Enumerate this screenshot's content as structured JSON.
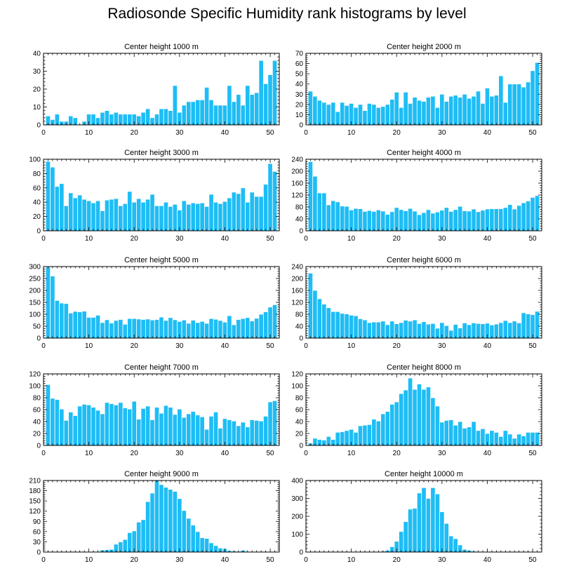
{
  "title": "Radiosonde Specific Humidity rank histograms by level",
  "colors": {
    "bar": "#1EBDF5",
    "bar_edge": "#ffffff",
    "axis": "#000000",
    "background": "#ffffff"
  },
  "chart_data": [
    {
      "type": "bar",
      "title": "Center height 1000 m",
      "xlabel": "",
      "ylabel": "",
      "xlim": [
        0,
        52
      ],
      "ylim": [
        0,
        40
      ],
      "xticks": [
        0,
        10,
        20,
        30,
        40,
        50
      ],
      "yticks": [
        0,
        10,
        20,
        30,
        40
      ],
      "x": [
        1,
        2,
        3,
        4,
        5,
        6,
        7,
        8,
        9,
        10,
        11,
        12,
        13,
        14,
        15,
        16,
        17,
        18,
        19,
        20,
        21,
        22,
        23,
        24,
        25,
        26,
        27,
        28,
        29,
        30,
        31,
        32,
        33,
        34,
        35,
        36,
        37,
        38,
        39,
        40,
        41,
        42,
        43,
        44,
        45,
        46,
        47,
        48,
        49,
        50,
        51
      ],
      "values": [
        5,
        3,
        6,
        2,
        2,
        5,
        4,
        0,
        2,
        6,
        6,
        4,
        7,
        8,
        6,
        7,
        6,
        6,
        6,
        6,
        5,
        7,
        9,
        4,
        6,
        9,
        9,
        8,
        22,
        7,
        11,
        13,
        13,
        14,
        14,
        21,
        14,
        11,
        11,
        11,
        22,
        13,
        17,
        11,
        22,
        17,
        18,
        36,
        23,
        28,
        36
      ]
    },
    {
      "type": "bar",
      "title": "Center height 2000 m",
      "xlabel": "",
      "ylabel": "",
      "xlim": [
        0,
        52
      ],
      "ylim": [
        0,
        70
      ],
      "xticks": [
        0,
        10,
        20,
        30,
        40,
        50
      ],
      "yticks": [
        0,
        10,
        20,
        30,
        40,
        50,
        60,
        70
      ],
      "x": [
        1,
        2,
        3,
        4,
        5,
        6,
        7,
        8,
        9,
        10,
        11,
        12,
        13,
        14,
        15,
        16,
        17,
        18,
        19,
        20,
        21,
        22,
        23,
        24,
        25,
        26,
        27,
        28,
        29,
        30,
        31,
        32,
        33,
        34,
        35,
        36,
        37,
        38,
        39,
        40,
        41,
        42,
        43,
        44,
        45,
        46,
        47,
        48,
        49,
        50,
        51
      ],
      "values": [
        33,
        28,
        24,
        22,
        20,
        22,
        13,
        22,
        19,
        21,
        17,
        20,
        14,
        21,
        20,
        17,
        18,
        20,
        25,
        32,
        17,
        32,
        21,
        27,
        24,
        23,
        27,
        28,
        17,
        30,
        23,
        28,
        29,
        27,
        30,
        26,
        28,
        33,
        21,
        36,
        28,
        29,
        48,
        22,
        40,
        40,
        40,
        37,
        42,
        53,
        61
      ]
    },
    {
      "type": "bar",
      "title": "Center height 3000 m",
      "xlabel": "",
      "ylabel": "",
      "xlim": [
        0,
        52
      ],
      "ylim": [
        0,
        100
      ],
      "xticks": [
        0,
        10,
        20,
        30,
        40,
        50
      ],
      "yticks": [
        0,
        20,
        40,
        60,
        80,
        100
      ],
      "x": [
        1,
        2,
        3,
        4,
        5,
        6,
        7,
        8,
        9,
        10,
        11,
        12,
        13,
        14,
        15,
        16,
        17,
        18,
        19,
        20,
        21,
        22,
        23,
        24,
        25,
        26,
        27,
        28,
        29,
        30,
        31,
        32,
        33,
        34,
        35,
        36,
        37,
        38,
        39,
        40,
        41,
        42,
        43,
        44,
        45,
        46,
        47,
        48,
        49,
        50,
        51
      ],
      "values": [
        97,
        89,
        62,
        66,
        35,
        53,
        46,
        50,
        44,
        42,
        39,
        42,
        28,
        43,
        44,
        45,
        35,
        38,
        55,
        40,
        45,
        40,
        44,
        51,
        35,
        35,
        40,
        34,
        37,
        29,
        42,
        37,
        39,
        38,
        39,
        34,
        51,
        40,
        38,
        41,
        46,
        54,
        52,
        60,
        40,
        54,
        48,
        48,
        65,
        94,
        83
      ]
    },
    {
      "type": "bar",
      "title": "Center height 4000 m",
      "xlabel": "",
      "ylabel": "",
      "xlim": [
        0,
        52
      ],
      "ylim": [
        0,
        240
      ],
      "xticks": [
        0,
        10,
        20,
        30,
        40,
        50
      ],
      "yticks": [
        0,
        40,
        80,
        120,
        160,
        200,
        240
      ],
      "x": [
        1,
        2,
        3,
        4,
        5,
        6,
        7,
        8,
        9,
        10,
        11,
        12,
        13,
        14,
        15,
        16,
        17,
        18,
        19,
        20,
        21,
        22,
        23,
        24,
        25,
        26,
        27,
        28,
        29,
        30,
        31,
        32,
        33,
        34,
        35,
        36,
        37,
        38,
        39,
        40,
        41,
        42,
        43,
        44,
        45,
        46,
        47,
        48,
        49,
        50,
        51
      ],
      "values": [
        232,
        183,
        127,
        127,
        87,
        101,
        97,
        83,
        82,
        70,
        75,
        74,
        65,
        68,
        65,
        70,
        66,
        55,
        64,
        78,
        71,
        67,
        75,
        66,
        54,
        61,
        71,
        59,
        63,
        69,
        78,
        65,
        71,
        82,
        67,
        66,
        73,
        64,
        69,
        73,
        74,
        74,
        74,
        78,
        88,
        73,
        85,
        94,
        100,
        112,
        118
      ]
    },
    {
      "type": "bar",
      "title": "Center height 5000 m",
      "xlabel": "",
      "ylabel": "",
      "xlim": [
        0,
        52
      ],
      "ylim": [
        0,
        300
      ],
      "xticks": [
        0,
        10,
        20,
        30,
        40,
        50
      ],
      "yticks": [
        0,
        50,
        100,
        150,
        200,
        250,
        300
      ],
      "x": [
        1,
        2,
        3,
        4,
        5,
        6,
        7,
        8,
        9,
        10,
        11,
        12,
        13,
        14,
        15,
        16,
        17,
        18,
        19,
        20,
        21,
        22,
        23,
        24,
        25,
        26,
        27,
        28,
        29,
        30,
        31,
        32,
        33,
        34,
        35,
        36,
        37,
        38,
        39,
        40,
        41,
        42,
        43,
        44,
        45,
        46,
        47,
        48,
        49,
        50,
        51
      ],
      "values": [
        298,
        260,
        158,
        147,
        145,
        105,
        112,
        110,
        113,
        87,
        87,
        96,
        65,
        77,
        63,
        74,
        78,
        58,
        82,
        82,
        80,
        78,
        80,
        76,
        78,
        88,
        74,
        86,
        77,
        70,
        76,
        62,
        75,
        65,
        70,
        62,
        82,
        79,
        74,
        67,
        94,
        56,
        78,
        82,
        86,
        72,
        83,
        100,
        110,
        130,
        140
      ]
    },
    {
      "type": "bar",
      "title": "Center height 6000 m",
      "xlabel": "",
      "ylabel": "",
      "xlim": [
        0,
        52
      ],
      "ylim": [
        0,
        240
      ],
      "xticks": [
        0,
        10,
        20,
        30,
        40,
        50
      ],
      "yticks": [
        0,
        40,
        80,
        120,
        160,
        200,
        240
      ],
      "x": [
        1,
        2,
        3,
        4,
        5,
        6,
        7,
        8,
        9,
        10,
        11,
        12,
        13,
        14,
        15,
        16,
        17,
        18,
        19,
        20,
        21,
        22,
        23,
        24,
        25,
        26,
        27,
        28,
        29,
        30,
        31,
        32,
        33,
        34,
        35,
        36,
        37,
        38,
        39,
        40,
        41,
        42,
        43,
        44,
        45,
        46,
        47,
        48,
        49,
        50,
        51
      ],
      "values": [
        218,
        160,
        132,
        114,
        102,
        89,
        89,
        83,
        81,
        77,
        75,
        65,
        61,
        52,
        54,
        54,
        57,
        45,
        57,
        48,
        52,
        60,
        57,
        61,
        49,
        55,
        47,
        49,
        33,
        52,
        42,
        26,
        46,
        34,
        51,
        45,
        51,
        49,
        48,
        50,
        44,
        47,
        52,
        59,
        52,
        57,
        51,
        85,
        81,
        79,
        90
      ]
    },
    {
      "type": "bar",
      "title": "Center height 7000 m",
      "xlabel": "",
      "ylabel": "",
      "xlim": [
        0,
        52
      ],
      "ylim": [
        0,
        120
      ],
      "xticks": [
        0,
        10,
        20,
        30,
        40,
        50
      ],
      "yticks": [
        0,
        20,
        40,
        60,
        80,
        100,
        120
      ],
      "x": [
        1,
        2,
        3,
        4,
        5,
        6,
        7,
        8,
        9,
        10,
        11,
        12,
        13,
        14,
        15,
        16,
        17,
        18,
        19,
        20,
        21,
        22,
        23,
        24,
        25,
        26,
        27,
        28,
        29,
        30,
        31,
        32,
        33,
        34,
        35,
        36,
        37,
        38,
        39,
        40,
        41,
        42,
        43,
        44,
        45,
        46,
        47,
        48,
        49,
        50,
        51
      ],
      "values": [
        102,
        79,
        77,
        61,
        42,
        56,
        50,
        66,
        69,
        68,
        64,
        59,
        53,
        72,
        70,
        68,
        72,
        63,
        61,
        74,
        44,
        62,
        66,
        43,
        64,
        54,
        67,
        64,
        52,
        61,
        47,
        53,
        57,
        51,
        48,
        27,
        49,
        56,
        29,
        45,
        43,
        41,
        33,
        39,
        31,
        43,
        42,
        41,
        49,
        73,
        75
      ]
    },
    {
      "type": "bar",
      "title": "Center height 8000 m",
      "xlabel": "",
      "ylabel": "",
      "xlim": [
        0,
        52
      ],
      "ylim": [
        0,
        120
      ],
      "xticks": [
        0,
        10,
        20,
        30,
        40,
        50
      ],
      "yticks": [
        0,
        20,
        40,
        60,
        80,
        100,
        120
      ],
      "x": [
        1,
        2,
        3,
        4,
        5,
        6,
        7,
        8,
        9,
        10,
        11,
        12,
        13,
        14,
        15,
        16,
        17,
        18,
        19,
        20,
        21,
        22,
        23,
        24,
        25,
        26,
        27,
        28,
        29,
        30,
        31,
        32,
        33,
        34,
        35,
        36,
        37,
        38,
        39,
        40,
        41,
        42,
        43,
        44,
        45,
        46,
        47,
        48,
        49,
        50,
        51
      ],
      "values": [
        4,
        12,
        10,
        9,
        15,
        10,
        22,
        23,
        25,
        27,
        22,
        33,
        34,
        35,
        44,
        41,
        53,
        57,
        69,
        73,
        87,
        93,
        113,
        94,
        103,
        94,
        98,
        80,
        66,
        39,
        42,
        43,
        34,
        40,
        29,
        31,
        40,
        25,
        28,
        20,
        25,
        22,
        15,
        25,
        19,
        12,
        19,
        16,
        22,
        22,
        22
      ]
    },
    {
      "type": "bar",
      "title": "Center height 9000 m",
      "xlabel": "",
      "ylabel": "",
      "xlim": [
        0,
        52
      ],
      "ylim": [
        0,
        210
      ],
      "xticks": [
        0,
        10,
        20,
        30,
        40,
        50
      ],
      "yticks": [
        0,
        30,
        60,
        90,
        120,
        150,
        180,
        210
      ],
      "x": [
        1,
        2,
        3,
        4,
        5,
        6,
        7,
        8,
        9,
        10,
        11,
        12,
        13,
        14,
        15,
        16,
        17,
        18,
        19,
        20,
        21,
        22,
        23,
        24,
        25,
        26,
        27,
        28,
        29,
        30,
        31,
        32,
        33,
        34,
        35,
        36,
        37,
        38,
        39,
        40,
        41,
        42,
        43,
        44,
        45,
        46,
        47,
        48,
        49,
        50,
        51
      ],
      "values": [
        0,
        0,
        0,
        0,
        0,
        0,
        0,
        0,
        0,
        1,
        1,
        2,
        6,
        7,
        8,
        23,
        30,
        37,
        57,
        62,
        88,
        95,
        148,
        173,
        210,
        198,
        190,
        184,
        178,
        157,
        122,
        99,
        79,
        60,
        42,
        40,
        27,
        19,
        12,
        10,
        4,
        3,
        2,
        5,
        2,
        1,
        0,
        0,
        0,
        0,
        0
      ]
    },
    {
      "type": "bar",
      "title": "Center height 10000 m",
      "xlabel": "",
      "ylabel": "",
      "xlim": [
        0,
        52
      ],
      "ylim": [
        0,
        400
      ],
      "xticks": [
        0,
        10,
        20,
        30,
        40,
        50
      ],
      "yticks": [
        0,
        100,
        200,
        300,
        400
      ],
      "x": [
        1,
        2,
        3,
        4,
        5,
        6,
        7,
        8,
        9,
        10,
        11,
        12,
        13,
        14,
        15,
        16,
        17,
        18,
        19,
        20,
        21,
        22,
        23,
        24,
        25,
        26,
        27,
        28,
        29,
        30,
        31,
        32,
        33,
        34,
        35,
        36,
        37,
        38,
        39,
        40,
        41,
        42,
        43,
        44,
        45,
        46,
        47,
        48,
        49,
        50,
        51
      ],
      "values": [
        0,
        0,
        0,
        0,
        0,
        0,
        0,
        0,
        0,
        0,
        0,
        0,
        0,
        0,
        0,
        2,
        5,
        10,
        30,
        60,
        115,
        170,
        240,
        245,
        330,
        360,
        300,
        360,
        325,
        225,
        160,
        90,
        75,
        40,
        15,
        10,
        5,
        2,
        1,
        0,
        0,
        0,
        0,
        0,
        0,
        0,
        0,
        0,
        0,
        0,
        0
      ]
    }
  ]
}
